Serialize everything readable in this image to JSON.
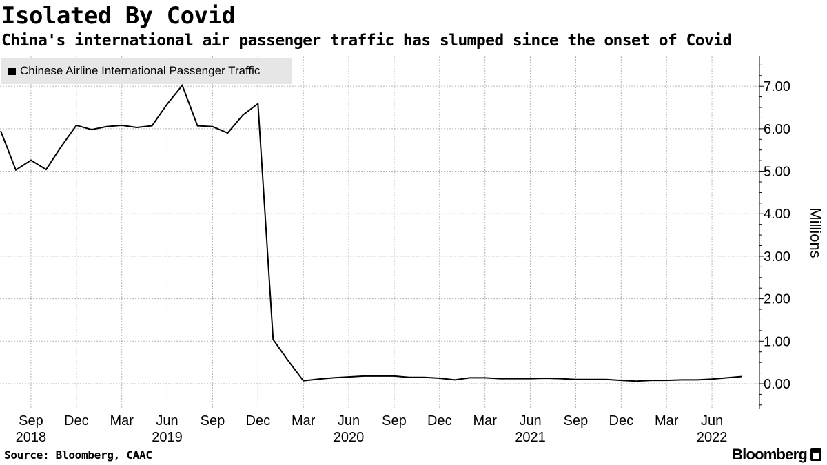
{
  "title": "Isolated By Covid",
  "subtitle": "China's international air passenger traffic has slumped since the onset of Covid",
  "source": "Source: Bloomberg, CAAC",
  "brand": "Bloomberg",
  "chart_data": {
    "type": "line",
    "title": "Isolated By Covid",
    "subtitle": "China's international air passenger traffic has slumped since the onset of Covid",
    "ylabel": "Millions",
    "ylim": [
      -0.6,
      7.7
    ],
    "yticks": [
      "7.00",
      "6.00",
      "5.00",
      "4.00",
      "3.00",
      "2.00",
      "1.00",
      "0.00"
    ],
    "ytick_values": [
      7,
      6,
      5,
      4,
      3,
      2,
      1,
      0
    ],
    "grid": true,
    "legend_position": "top-left",
    "x_ticks": [
      {
        "label": "Sep",
        "year": "2018"
      },
      {
        "label": "Dec",
        "year": ""
      },
      {
        "label": "Mar",
        "year": ""
      },
      {
        "label": "Jun",
        "year": "2019"
      },
      {
        "label": "Sep",
        "year": ""
      },
      {
        "label": "Dec",
        "year": ""
      },
      {
        "label": "Mar",
        "year": ""
      },
      {
        "label": "Jun",
        "year": "2020"
      },
      {
        "label": "Sep",
        "year": ""
      },
      {
        "label": "Dec",
        "year": ""
      },
      {
        "label": "Mar",
        "year": ""
      },
      {
        "label": "Jun",
        "year": "2021"
      },
      {
        "label": "Sep",
        "year": ""
      },
      {
        "label": "Dec",
        "year": ""
      },
      {
        "label": "Mar",
        "year": ""
      },
      {
        "label": "Jun",
        "year": "2022"
      }
    ],
    "series": [
      {
        "name": "Chinese Airline International Passenger Traffic",
        "color": "#000000",
        "x": [
          "2018-07",
          "2018-08",
          "2018-09",
          "2018-10",
          "2018-11",
          "2018-12",
          "2019-01",
          "2019-02",
          "2019-03",
          "2019-04",
          "2019-05",
          "2019-06",
          "2019-07",
          "2019-08",
          "2019-09",
          "2019-10",
          "2019-11",
          "2019-12",
          "2020-01",
          "2020-02",
          "2020-03",
          "2020-04",
          "2020-05",
          "2020-06",
          "2020-07",
          "2020-08",
          "2020-09",
          "2020-10",
          "2020-11",
          "2020-12",
          "2021-01",
          "2021-02",
          "2021-03",
          "2021-04",
          "2021-05",
          "2021-06",
          "2021-07",
          "2021-08",
          "2021-09",
          "2021-10",
          "2021-11",
          "2021-12",
          "2022-01",
          "2022-02",
          "2022-03",
          "2022-04",
          "2022-05",
          "2022-06",
          "2022-07",
          "2022-08"
        ],
        "values": [
          5.95,
          5.03,
          5.26,
          5.04,
          5.58,
          6.08,
          5.98,
          6.05,
          6.08,
          6.03,
          6.07,
          6.58,
          7.02,
          6.07,
          6.05,
          5.9,
          6.32,
          6.59,
          1.04,
          0.54,
          0.07,
          0.11,
          0.14,
          0.16,
          0.18,
          0.18,
          0.18,
          0.15,
          0.15,
          0.13,
          0.09,
          0.14,
          0.14,
          0.12,
          0.12,
          0.12,
          0.13,
          0.12,
          0.1,
          0.1,
          0.1,
          0.08,
          0.06,
          0.08,
          0.08,
          0.09,
          0.09,
          0.11,
          0.14,
          0.17
        ]
      }
    ]
  }
}
